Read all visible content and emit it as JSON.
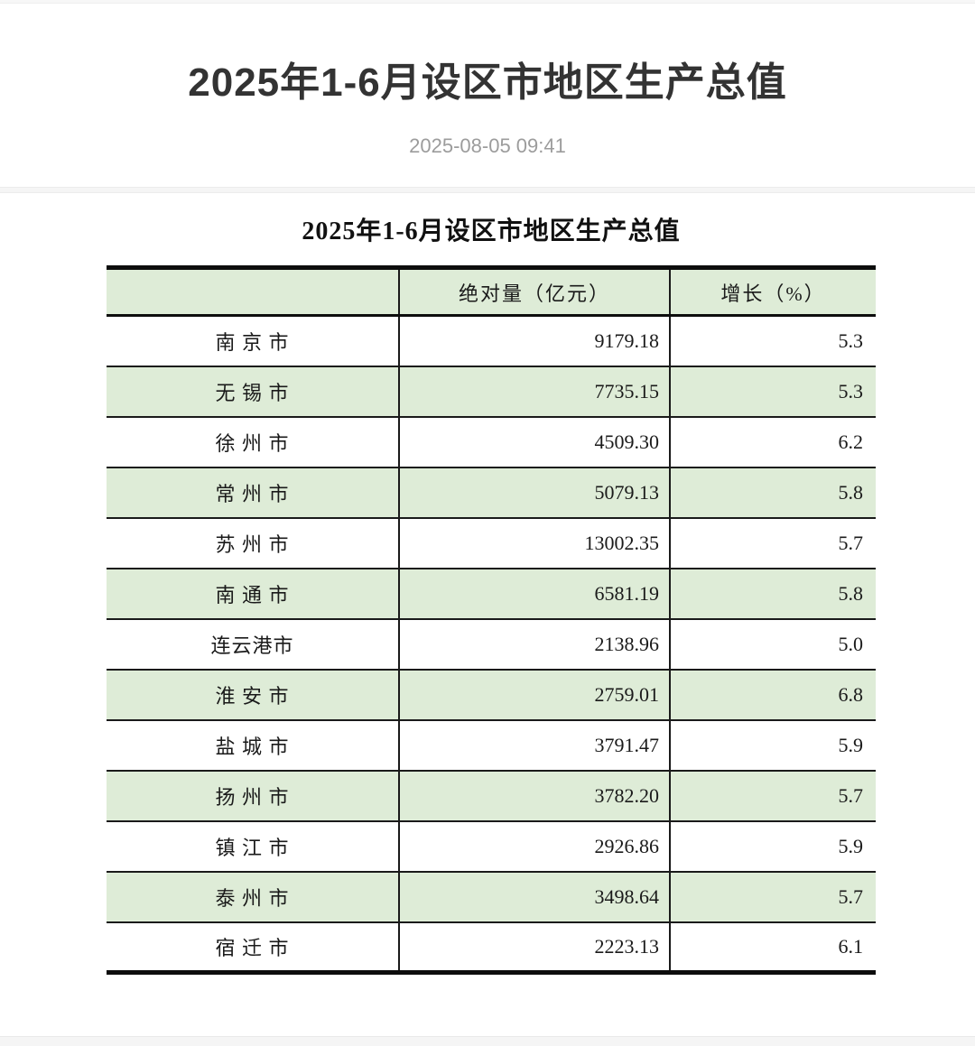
{
  "header": {
    "title": "2025年1-6月设区市地区生产总值",
    "date": "2025-08-05 09:41"
  },
  "table": {
    "title": "2025年1-6月设区市地区生产总值",
    "columns": [
      "",
      "绝对量（亿元）",
      "增长（%）"
    ],
    "rows": [
      {
        "city": "南 京 市",
        "value": "9179.18",
        "growth": "5.3"
      },
      {
        "city": "无 锡 市",
        "value": "7735.15",
        "growth": "5.3"
      },
      {
        "city": "徐 州 市",
        "value": "4509.30",
        "growth": "6.2"
      },
      {
        "city": "常 州 市",
        "value": "5079.13",
        "growth": "5.8"
      },
      {
        "city": "苏 州 市",
        "value": "13002.35",
        "growth": "5.7"
      },
      {
        "city": "南 通 市",
        "value": "6581.19",
        "growth": "5.8"
      },
      {
        "city": "连云港市",
        "value": "2138.96",
        "growth": "5.0"
      },
      {
        "city": "淮 安 市",
        "value": "2759.01",
        "growth": "6.8"
      },
      {
        "city": "盐 城 市",
        "value": "3791.47",
        "growth": "5.9"
      },
      {
        "city": "扬 州 市",
        "value": "3782.20",
        "growth": "5.7"
      },
      {
        "city": "镇 江 市",
        "value": "2926.86",
        "growth": "5.9"
      },
      {
        "city": "泰 州 市",
        "value": "3498.64",
        "growth": "5.7"
      },
      {
        "city": "宿 迁 市",
        "value": "2223.13",
        "growth": "6.1"
      }
    ]
  },
  "colors": {
    "row_highlight_green": "#deecd7",
    "table_border_black": "#0d0d0d",
    "title_text": "#333333",
    "date_text": "#9c9c9c",
    "page_strip_gray": "#f5f5f5"
  }
}
